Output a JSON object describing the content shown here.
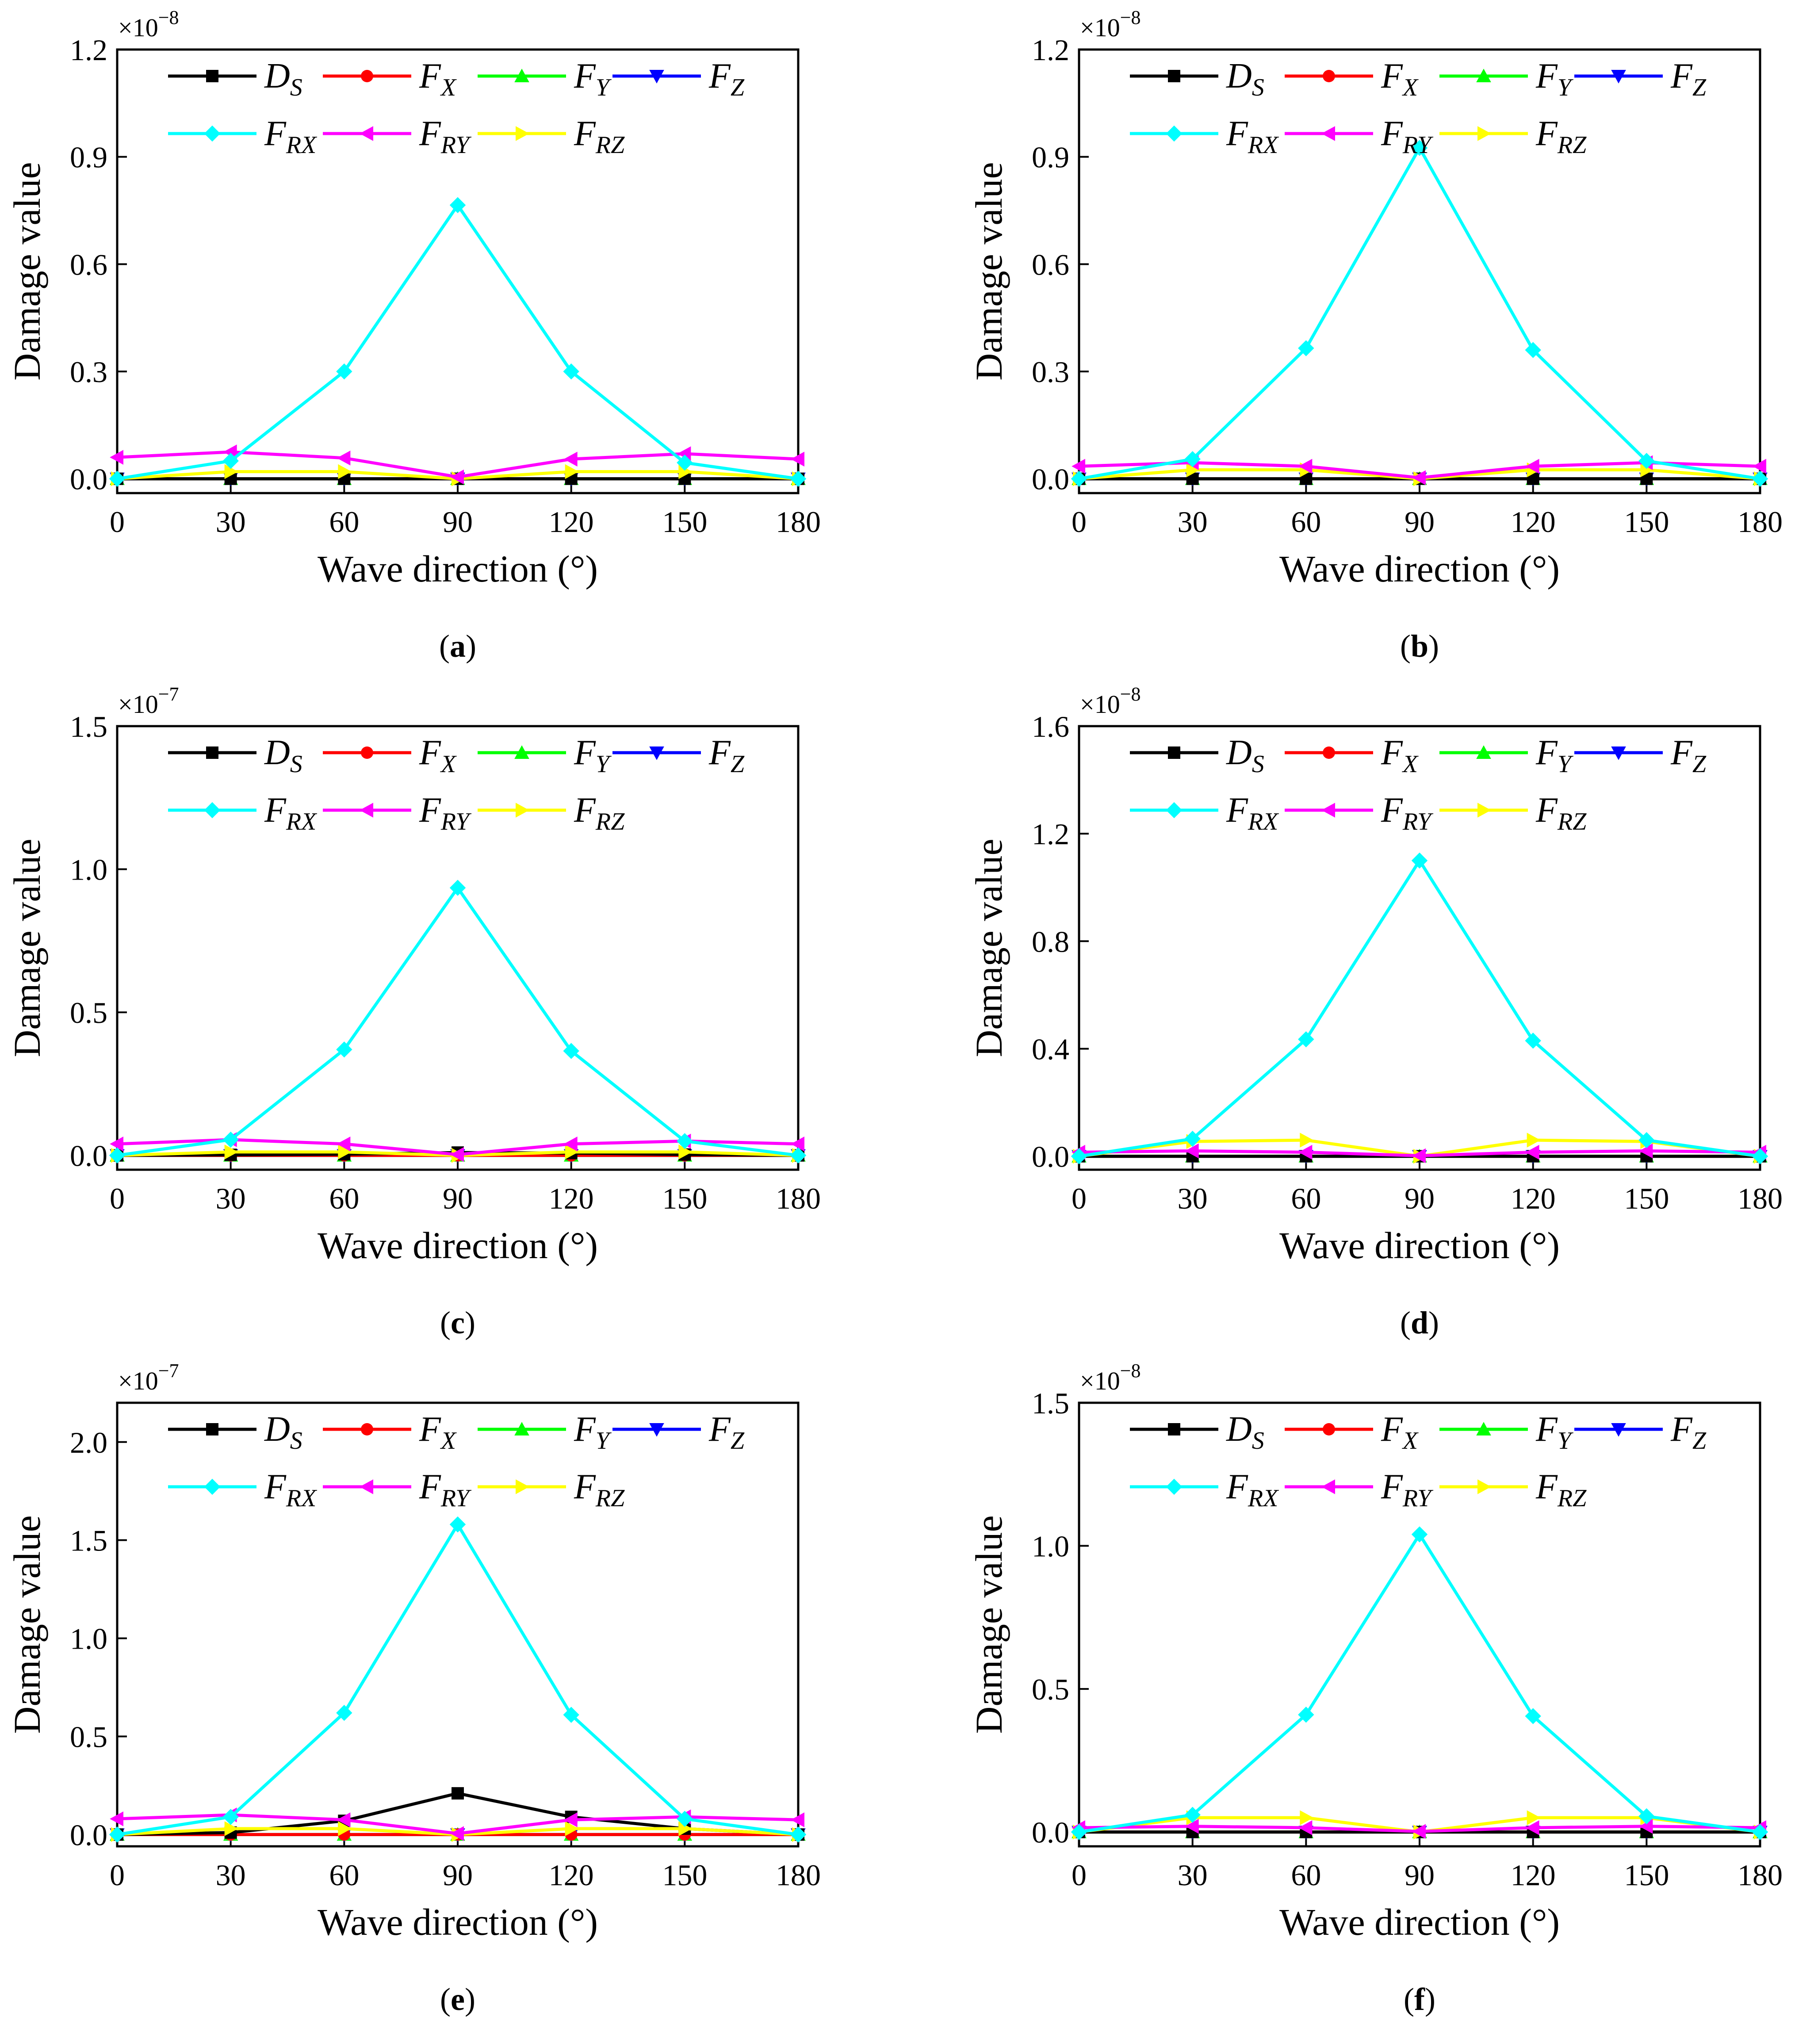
{
  "x_values": [
    0,
    30,
    60,
    90,
    120,
    150,
    180
  ],
  "x_ticks": [
    "0",
    "30",
    "60",
    "90",
    "120",
    "150",
    "180"
  ],
  "series_meta": [
    {
      "key": "DS",
      "base": "D",
      "sub": "S",
      "color": "#000000",
      "marker": "square"
    },
    {
      "key": "FX",
      "base": "F",
      "sub": "X",
      "color": "#ff0000",
      "marker": "circle"
    },
    {
      "key": "FY",
      "base": "F",
      "sub": "Y",
      "color": "#00ff00",
      "marker": "triangle-up"
    },
    {
      "key": "FZ",
      "base": "F",
      "sub": "Z",
      "color": "#0000ff",
      "marker": "triangle-down"
    },
    {
      "key": "FRX",
      "base": "F",
      "sub": "RX",
      "color": "#00ffff",
      "marker": "diamond"
    },
    {
      "key": "FRY",
      "base": "F",
      "sub": "RY",
      "color": "#ff00ff",
      "marker": "triangle-left"
    },
    {
      "key": "FRZ",
      "base": "F",
      "sub": "RZ",
      "color": "#ffff00",
      "marker": "triangle-right"
    }
  ],
  "chart_data": [
    {
      "type": "line",
      "panel": "a",
      "caption_letter": "a",
      "xlabel": "Wave direction (°)",
      "ylabel": "Damage value",
      "multiplier_base": "×10",
      "multiplier_exp": "−8",
      "ylim": [
        -0.04,
        1.2
      ],
      "xlim": [
        0,
        180
      ],
      "y_ticks": [
        0.0,
        0.3,
        0.6,
        0.9,
        1.2
      ],
      "y_tick_labels": [
        "0.0",
        "0.3",
        "0.6",
        "0.9",
        "1.2"
      ],
      "series": {
        "DS": [
          0,
          0,
          0,
          0,
          0,
          0,
          0
        ],
        "FX": [
          0,
          0,
          0,
          0,
          0,
          0,
          0
        ],
        "FY": [
          0,
          0,
          0,
          0,
          0,
          0,
          0
        ],
        "FZ": [
          0,
          0,
          0,
          0,
          0,
          0,
          0
        ],
        "FRX": [
          0.0,
          0.05,
          0.3,
          0.765,
          0.3,
          0.045,
          0.0
        ],
        "FRY": [
          0.06,
          0.075,
          0.058,
          0.005,
          0.055,
          0.07,
          0.055
        ],
        "FRZ": [
          0.0,
          0.02,
          0.02,
          0.0,
          0.02,
          0.02,
          0.0
        ]
      }
    },
    {
      "type": "line",
      "panel": "b",
      "caption_letter": "b",
      "xlabel": "Wave direction (°)",
      "ylabel": "Damage value",
      "multiplier_base": "×10",
      "multiplier_exp": "−8",
      "ylim": [
        -0.04,
        1.2
      ],
      "xlim": [
        0,
        180
      ],
      "y_ticks": [
        0.0,
        0.3,
        0.6,
        0.9,
        1.2
      ],
      "y_tick_labels": [
        "0.0",
        "0.3",
        "0.6",
        "0.9",
        "1.2"
      ],
      "series": {
        "DS": [
          0,
          0,
          0,
          0,
          0,
          0,
          0
        ],
        "FX": [
          0,
          0,
          0,
          0,
          0,
          0,
          0
        ],
        "FY": [
          0,
          0,
          0,
          0,
          0,
          0,
          0
        ],
        "FZ": [
          0,
          0,
          0,
          0,
          0,
          0,
          0
        ],
        "FRX": [
          0.0,
          0.055,
          0.365,
          0.925,
          0.36,
          0.05,
          0.0
        ],
        "FRY": [
          0.035,
          0.045,
          0.035,
          0.003,
          0.035,
          0.045,
          0.035
        ],
        "FRZ": [
          0.0,
          0.025,
          0.025,
          0.0,
          0.025,
          0.025,
          0.0
        ]
      }
    },
    {
      "type": "line",
      "panel": "c",
      "caption_letter": "c",
      "xlabel": "Wave direction (°)",
      "ylabel": "Damage value",
      "multiplier_base": "×10",
      "multiplier_exp": "−7",
      "ylim": [
        -0.05,
        1.5
      ],
      "xlim": [
        0,
        180
      ],
      "y_ticks": [
        0.0,
        0.5,
        1.0,
        1.5
      ],
      "y_tick_labels": [
        "0.0",
        "0.5",
        "1.0",
        "1.5"
      ],
      "series": {
        "DS": [
          0,
          0.002,
          0.004,
          0.01,
          0.008,
          0.003,
          0
        ],
        "FX": [
          0,
          0,
          0,
          0,
          0,
          0,
          0
        ],
        "FY": [
          0,
          0,
          0,
          0,
          0,
          0,
          0
        ],
        "FZ": [
          0,
          0,
          0,
          0,
          0,
          0,
          0
        ],
        "FRX": [
          0.0,
          0.055,
          0.37,
          0.935,
          0.365,
          0.05,
          0.0
        ],
        "FRY": [
          0.04,
          0.055,
          0.04,
          0.003,
          0.04,
          0.05,
          0.04
        ],
        "FRZ": [
          0.0,
          0.012,
          0.012,
          0.0,
          0.012,
          0.012,
          0.0
        ]
      }
    },
    {
      "type": "line",
      "panel": "d",
      "caption_letter": "d",
      "xlabel": "Wave direction (°)",
      "ylabel": "Damage value",
      "multiplier_base": "×10",
      "multiplier_exp": "−8",
      "ylim": [
        -0.05,
        1.6
      ],
      "xlim": [
        0,
        180
      ],
      "y_ticks": [
        0.0,
        0.4,
        0.8,
        1.2,
        1.6
      ],
      "y_tick_labels": [
        "0.0",
        "0.4",
        "0.8",
        "1.2",
        "1.6"
      ],
      "series": {
        "DS": [
          0,
          0,
          0,
          0,
          0,
          0,
          0
        ],
        "FX": [
          0,
          0,
          0,
          0,
          0,
          0,
          0
        ],
        "FY": [
          0,
          0,
          0,
          0,
          0,
          0,
          0
        ],
        "FZ": [
          0,
          0,
          0,
          0,
          0,
          0,
          0
        ],
        "FRX": [
          0.0,
          0.065,
          0.435,
          1.1,
          0.43,
          0.06,
          0.0
        ],
        "FRY": [
          0.015,
          0.02,
          0.015,
          0.002,
          0.015,
          0.02,
          0.015
        ],
        "FRZ": [
          0.0,
          0.055,
          0.06,
          0.0,
          0.06,
          0.055,
          0.0
        ]
      }
    },
    {
      "type": "line",
      "panel": "e",
      "caption_letter": "e",
      "xlabel": "Wave direction (°)",
      "ylabel": "Damage value",
      "multiplier_base": "×10",
      "multiplier_exp": "−7",
      "ylim": [
        -0.06,
        2.2
      ],
      "xlim": [
        0,
        180
      ],
      "y_ticks": [
        0.0,
        0.5,
        1.0,
        1.5,
        2.0
      ],
      "y_tick_labels": [
        "0.0",
        "0.5",
        "1.0",
        "1.5",
        "2.0"
      ],
      "series": {
        "DS": [
          0.0,
          0.01,
          0.07,
          0.21,
          0.09,
          0.03,
          0.0
        ],
        "FX": [
          0,
          0,
          0,
          0,
          0,
          0,
          0
        ],
        "FY": [
          0,
          0,
          0,
          0,
          0,
          0,
          0
        ],
        "FZ": [
          0,
          0,
          0,
          0,
          0,
          0,
          0
        ],
        "FRX": [
          0.0,
          0.09,
          0.62,
          1.58,
          0.61,
          0.08,
          0.0
        ],
        "FRY": [
          0.08,
          0.1,
          0.075,
          0.005,
          0.075,
          0.09,
          0.075
        ],
        "FRZ": [
          0.0,
          0.03,
          0.03,
          0.0,
          0.03,
          0.03,
          0.0
        ]
      }
    },
    {
      "type": "line",
      "panel": "f",
      "caption_letter": "f",
      "xlabel": "Wave direction (°)",
      "ylabel": "Damage value",
      "multiplier_base": "×10",
      "multiplier_exp": "−8",
      "ylim": [
        -0.05,
        1.5
      ],
      "xlim": [
        0,
        180
      ],
      "y_ticks": [
        0.0,
        0.5,
        1.0,
        1.5
      ],
      "y_tick_labels": [
        "0.0",
        "0.5",
        "1.0",
        "1.5"
      ],
      "series": {
        "DS": [
          0,
          0,
          0,
          0,
          0,
          0,
          0
        ],
        "FX": [
          0,
          0,
          0,
          0,
          0,
          0,
          0
        ],
        "FY": [
          0,
          0,
          0,
          0,
          0,
          0,
          0
        ],
        "FZ": [
          0,
          0,
          0,
          0,
          0,
          0,
          0
        ],
        "FRX": [
          0.0,
          0.06,
          0.41,
          1.04,
          0.405,
          0.055,
          0.0
        ],
        "FRY": [
          0.015,
          0.02,
          0.015,
          0.002,
          0.015,
          0.02,
          0.015
        ],
        "FRZ": [
          0.0,
          0.05,
          0.05,
          0.0,
          0.05,
          0.05,
          0.0
        ]
      }
    }
  ]
}
